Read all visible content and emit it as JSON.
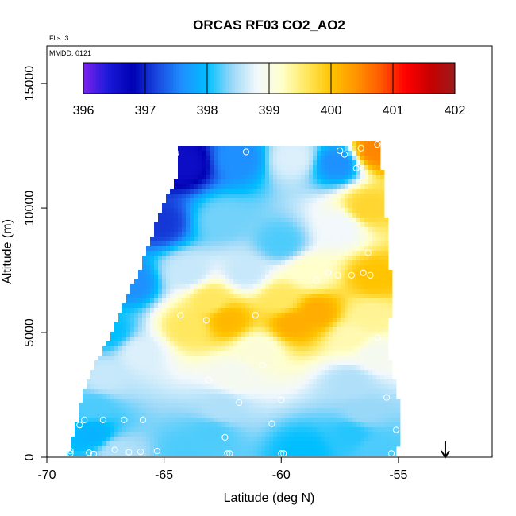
{
  "chart_data": {
    "type": "heatmap",
    "title": "ORCAS RF03 CO2_AO2",
    "subtitle_flights": "Flts: 3",
    "subtitle_date": "MMDD: 0121",
    "xlabel": "Latitude (deg N)",
    "ylabel": "Altitude (m)",
    "xlim": [
      -70,
      -51
    ],
    "ylim": [
      0,
      16500
    ],
    "x_ticks": [
      -70,
      -65,
      -60,
      -55
    ],
    "x_tick_labels": [
      "-70",
      "-65",
      "-60",
      "-55"
    ],
    "y_ticks": [
      0,
      5000,
      10000,
      15000
    ],
    "y_tick_labels": [
      "0",
      "5000",
      "10000",
      "15000"
    ],
    "colorbar": {
      "min": 396,
      "max": 402,
      "ticks": [
        396,
        397,
        398,
        399,
        400,
        401,
        402
      ],
      "tick_labels": [
        "396",
        "397",
        "398",
        "399",
        "400",
        "401",
        "402"
      ],
      "colors": [
        "#7b22ee",
        "#1a1ad8",
        "#0000b4",
        "#1a4ae0",
        "#1e90ff",
        "#00bfff",
        "#9ad8f8",
        "#f2f8fc",
        "#ffffcc",
        "#ffe860",
        "#ffc400",
        "#ff9500",
        "#ff5a00",
        "#ff0000",
        "#c80000",
        "#9b1b1b"
      ]
    },
    "domain_outline": [
      [
        -69.1,
        200
      ],
      [
        -68.8,
        1200
      ],
      [
        -68.4,
        2800
      ],
      [
        -67.8,
        4000
      ],
      [
        -67.0,
        5400
      ],
      [
        -66.6,
        6400
      ],
      [
        -66.0,
        7600
      ],
      [
        -65.6,
        8700
      ],
      [
        -65.2,
        9700
      ],
      [
        -64.5,
        11200
      ],
      [
        -64.4,
        12400
      ],
      [
        -57.2,
        12400
      ],
      [
        -56.9,
        12600
      ],
      [
        -55.8,
        12600
      ],
      [
        -55.6,
        10500
      ],
      [
        -55.3,
        7000
      ],
      [
        -55.4,
        4200
      ],
      [
        -55.0,
        2300
      ],
      [
        -54.9,
        800
      ],
      [
        -55.2,
        0
      ],
      [
        -69.2,
        0
      ]
    ],
    "field_anchors": [
      {
        "lat": -64.2,
        "alt": 11800,
        "value": 396.6
      },
      {
        "lat": -61.8,
        "alt": 12000,
        "value": 397.6
      },
      {
        "lat": -59.5,
        "alt": 12000,
        "value": 398.7
      },
      {
        "lat": -57.6,
        "alt": 11800,
        "value": 397.6
      },
      {
        "lat": -56.0,
        "alt": 12300,
        "value": 400.5
      },
      {
        "lat": -56.3,
        "alt": 10000,
        "value": 399.8
      },
      {
        "lat": -65.2,
        "alt": 9400,
        "value": 397.1
      },
      {
        "lat": -62.5,
        "alt": 9500,
        "value": 398.3
      },
      {
        "lat": -60.0,
        "alt": 8600,
        "value": 398.2
      },
      {
        "lat": -57.5,
        "alt": 9200,
        "value": 398.8
      },
      {
        "lat": -66.4,
        "alt": 7000,
        "value": 397.6
      },
      {
        "lat": -64.0,
        "alt": 7400,
        "value": 398.6
      },
      {
        "lat": -61.5,
        "alt": 7400,
        "value": 398.6
      },
      {
        "lat": -58.8,
        "alt": 7400,
        "value": 399.2
      },
      {
        "lat": -56.0,
        "alt": 7200,
        "value": 400.0
      },
      {
        "lat": -63.0,
        "alt": 6300,
        "value": 399.6
      },
      {
        "lat": -60.0,
        "alt": 6300,
        "value": 399.6
      },
      {
        "lat": -58.5,
        "alt": 5800,
        "value": 400.2
      },
      {
        "lat": -56.2,
        "alt": 5600,
        "value": 399.4
      },
      {
        "lat": -67.3,
        "alt": 5000,
        "value": 398.0
      },
      {
        "lat": -64.0,
        "alt": 5200,
        "value": 399.6
      },
      {
        "lat": -62.3,
        "alt": 5500,
        "value": 400.1
      },
      {
        "lat": -59.5,
        "alt": 5400,
        "value": 400.2
      },
      {
        "lat": -57.0,
        "alt": 4800,
        "value": 399.3
      },
      {
        "lat": -66.0,
        "alt": 4200,
        "value": 398.7
      },
      {
        "lat": -61.0,
        "alt": 4300,
        "value": 399.1
      },
      {
        "lat": -56.0,
        "alt": 4100,
        "value": 398.9
      },
      {
        "lat": -67.5,
        "alt": 3200,
        "value": 398.6
      },
      {
        "lat": -62.0,
        "alt": 3200,
        "value": 398.9
      },
      {
        "lat": -57.0,
        "alt": 3000,
        "value": 398.5
      },
      {
        "lat": -68.0,
        "alt": 2000,
        "value": 398.2
      },
      {
        "lat": -62.5,
        "alt": 2000,
        "value": 398.5
      },
      {
        "lat": -56.5,
        "alt": 1800,
        "value": 398.4
      },
      {
        "lat": -68.0,
        "alt": 900,
        "value": 397.9
      },
      {
        "lat": -63.0,
        "alt": 900,
        "value": 398.2
      },
      {
        "lat": -57.0,
        "alt": 900,
        "value": 398.1
      },
      {
        "lat": -67.0,
        "alt": 200,
        "value": 398.5
      },
      {
        "lat": -64.0,
        "alt": 200,
        "value": 398.2
      },
      {
        "lat": -59.0,
        "alt": 200,
        "value": 398.0
      },
      {
        "lat": -56.0,
        "alt": 300,
        "value": 398.2
      }
    ],
    "sample_points": [
      {
        "lat": -64.5,
        "alt": 12200
      },
      {
        "lat": -61.5,
        "alt": 12250
      },
      {
        "lat": -57.5,
        "alt": 12300
      },
      {
        "lat": -57.3,
        "alt": 12150
      },
      {
        "lat": -56.6,
        "alt": 12400
      },
      {
        "lat": -55.9,
        "alt": 12550
      },
      {
        "lat": -56.8,
        "alt": 11600
      },
      {
        "lat": -56.3,
        "alt": 8200
      },
      {
        "lat": -56.5,
        "alt": 7400
      },
      {
        "lat": -57.0,
        "alt": 7300
      },
      {
        "lat": -57.6,
        "alt": 7300
      },
      {
        "lat": -58.0,
        "alt": 7400
      },
      {
        "lat": -58.5,
        "alt": 7100
      },
      {
        "lat": -56.2,
        "alt": 7300
      },
      {
        "lat": -64.3,
        "alt": 5700
      },
      {
        "lat": -63.2,
        "alt": 5500
      },
      {
        "lat": -61.1,
        "alt": 5700
      },
      {
        "lat": -55.9,
        "alt": 4800
      },
      {
        "lat": -60.8,
        "alt": 3700
      },
      {
        "lat": -63.1,
        "alt": 3100
      },
      {
        "lat": -61.8,
        "alt": 2200
      },
      {
        "lat": -60.0,
        "alt": 2300
      },
      {
        "lat": -55.5,
        "alt": 2400
      },
      {
        "lat": -68.4,
        "alt": 1500
      },
      {
        "lat": -67.6,
        "alt": 1500
      },
      {
        "lat": -66.7,
        "alt": 1500
      },
      {
        "lat": -65.9,
        "alt": 1500
      },
      {
        "lat": -68.6,
        "alt": 1300
      },
      {
        "lat": -60.4,
        "alt": 1350
      },
      {
        "lat": -62.4,
        "alt": 800
      },
      {
        "lat": -55.1,
        "alt": 1100
      },
      {
        "lat": -69.0,
        "alt": 250
      },
      {
        "lat": -69.0,
        "alt": 150
      },
      {
        "lat": -68.2,
        "alt": 180
      },
      {
        "lat": -68.0,
        "alt": 130
      },
      {
        "lat": -67.1,
        "alt": 300
      },
      {
        "lat": -66.5,
        "alt": 200
      },
      {
        "lat": -66.0,
        "alt": 220
      },
      {
        "lat": -65.3,
        "alt": 250
      },
      {
        "lat": -62.3,
        "alt": 150
      },
      {
        "lat": -62.2,
        "alt": 150
      },
      {
        "lat": -59.9,
        "alt": 150
      },
      {
        "lat": -60.0,
        "alt": 150
      },
      {
        "lat": -55.3,
        "alt": 150
      }
    ],
    "arrow_marker": {
      "lat": -53.0
    }
  }
}
